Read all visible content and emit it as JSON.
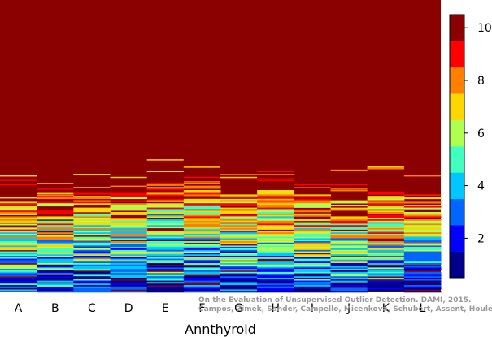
{
  "chart_data": {
    "type": "heatmap",
    "xlabel": "Annthyroid",
    "ylabel": "",
    "categories": [
      "A",
      "B",
      "C",
      "D",
      "E",
      "F",
      "G",
      "H",
      "I",
      "J",
      "K",
      "L"
    ],
    "top_rank_per_column": [
      62,
      67,
      68,
      68,
      74,
      73,
      67,
      73,
      68,
      66,
      71,
      65
    ],
    "colorbar": {
      "ticks": [
        2,
        4,
        6,
        8,
        10
      ],
      "range": [
        0.5,
        10.5
      ],
      "colors": [
        "#00008B",
        "#0000FF",
        "#0066FF",
        "#00C8FF",
        "#40FFBF",
        "#B0FF50",
        "#FFD700",
        "#FF8000",
        "#FF0000",
        "#8B0000"
      ]
    },
    "background_color": "#8B0000",
    "grid": false
  },
  "watermark": {
    "line1": "On the Evaluation of Unsupervised Outlier Detection. DAMI, 2015.",
    "line2": "Campos, Zimek, Sander, Campello, Micenková, Schubert, Assent, Houle"
  }
}
